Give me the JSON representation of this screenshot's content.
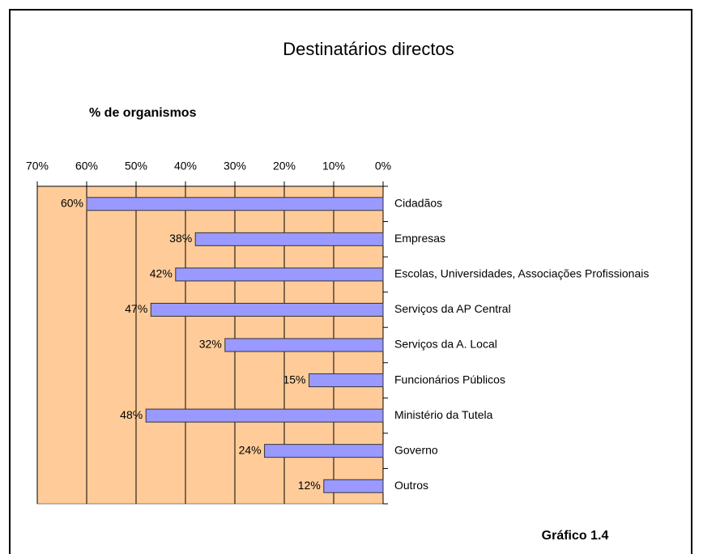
{
  "chart_data": {
    "type": "hbar",
    "title": "Destinatários directos",
    "subtitle": "% de organismos",
    "annotation": "Gráfico 1.4",
    "categories": [
      "Cidadãos",
      "Empresas",
      "Escolas, Universidades, Associações Profissionais",
      "Serviços da AP Central",
      "Serviços da A. Local",
      "Funcionários Públicos",
      "Ministério da Tutela",
      "Governo",
      "Outros"
    ],
    "values": [
      60,
      38,
      42,
      47,
      32,
      15,
      48,
      24,
      12
    ],
    "value_labels": [
      "60%",
      "38%",
      "42%",
      "47%",
      "32%",
      "15%",
      "48%",
      "24%",
      "12%"
    ],
    "color": "#9999ff",
    "background": "#ffcc99",
    "xlim": [
      0,
      70
    ],
    "x_reversed": true,
    "xticks": [
      {
        "value": 70,
        "label": "70%"
      },
      {
        "value": 60,
        "label": "60%"
      },
      {
        "value": 50,
        "label": "50%"
      },
      {
        "value": 40,
        "label": "40%"
      },
      {
        "value": 30,
        "label": "30%"
      },
      {
        "value": 20,
        "label": "20%"
      },
      {
        "value": 10,
        "label": "10%"
      },
      {
        "value": 0,
        "label": "0%"
      }
    ],
    "grid": true
  }
}
